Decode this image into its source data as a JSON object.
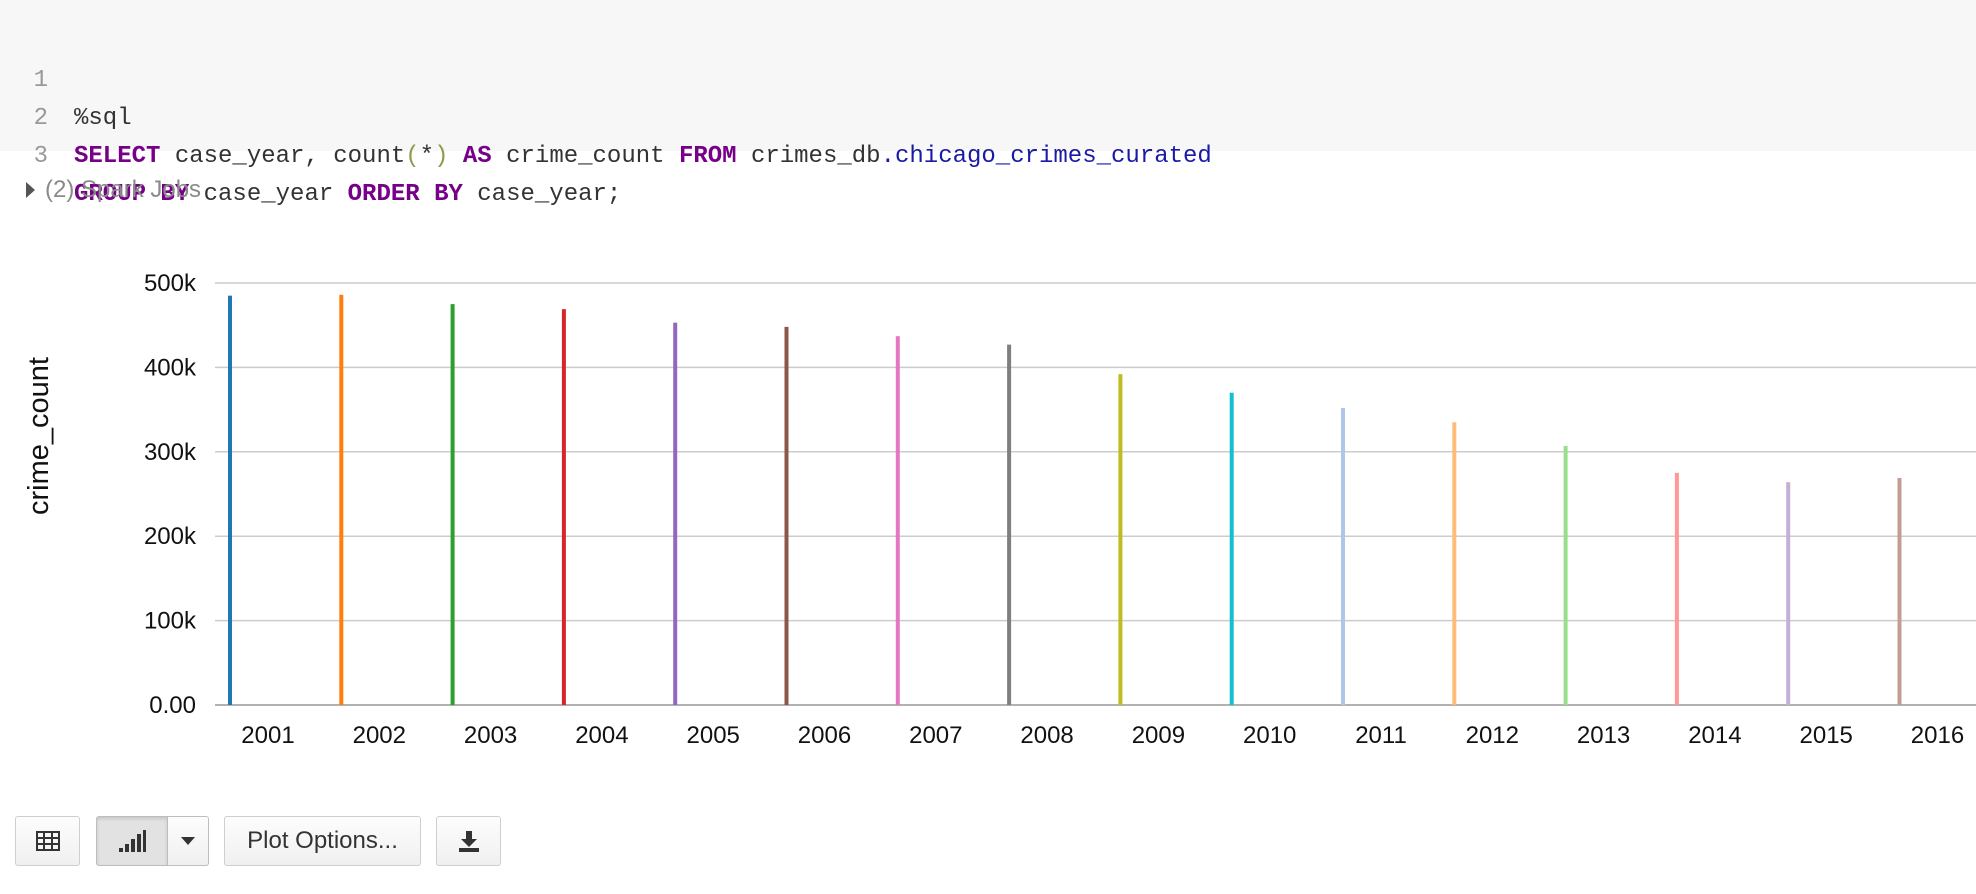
{
  "code_cell": {
    "lines": [
      {
        "no": "1",
        "magic": "%sql"
      },
      {
        "no": "2",
        "kw_select": "SELECT",
        "cols": " case_year, count",
        "paren_open": "(",
        "star": "*",
        "paren_close": ")",
        "kw_as": " AS",
        "alias": " crime_count ",
        "kw_from": "FROM",
        "schema": " crimes_db",
        "table": ".chicago_crimes_curated"
      },
      {
        "no": "3",
        "kw_group": "GROUP BY",
        "group_col": " case_year ",
        "kw_order": "ORDER BY",
        "order_col": " case_year;"
      }
    ]
  },
  "spark_jobs": {
    "label": "(2) Spark Jobs"
  },
  "chart_data": {
    "type": "bar",
    "ylabel": "crime_count",
    "xlabel": "",
    "ylim": [
      0,
      500000
    ],
    "y_ticks": [
      {
        "value": 0,
        "label": "0.00"
      },
      {
        "value": 100000,
        "label": "100k"
      },
      {
        "value": 200000,
        "label": "200k"
      },
      {
        "value": 300000,
        "label": "300k"
      },
      {
        "value": 400000,
        "label": "400k"
      },
      {
        "value": 500000,
        "label": "500k"
      }
    ],
    "grid": true,
    "categories": [
      "2001",
      "2002",
      "2003",
      "2004",
      "2005",
      "2006",
      "2007",
      "2008",
      "2009",
      "2010",
      "2011",
      "2012",
      "2013",
      "2014",
      "2015",
      "2016"
    ],
    "values": [
      485000,
      486000,
      475000,
      469000,
      453000,
      448000,
      437000,
      427000,
      392000,
      370000,
      352000,
      335000,
      307000,
      275000,
      264000,
      269000
    ],
    "colors": [
      "#1f77b4",
      "#ff7f0e",
      "#2ca02c",
      "#d62728",
      "#9467bd",
      "#8c564b",
      "#e377c2",
      "#7f7f7f",
      "#bcbd22",
      "#17becf",
      "#aec7e8",
      "#ffbb78",
      "#98df8a",
      "#ff9896",
      "#c5b0d5",
      "#c49c94"
    ]
  },
  "toolbar": {
    "table_icon": "table-icon",
    "chart_icon": "bar-chart-icon",
    "dropdown_icon": "caret-down-icon",
    "plot_options_label": "Plot Options...",
    "download_icon": "download-icon"
  }
}
